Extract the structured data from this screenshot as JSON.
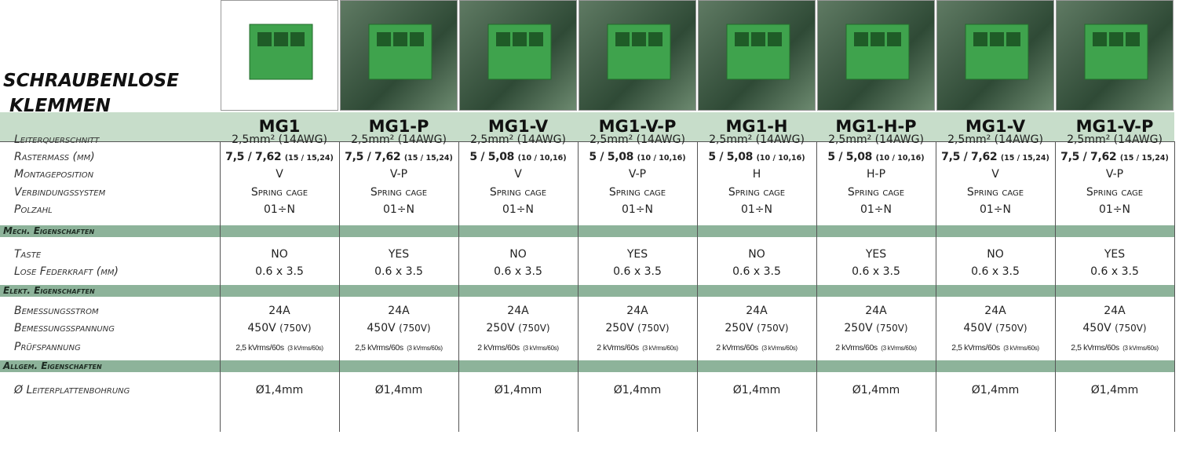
{
  "title": [
    "SCHRAUBENLOSE",
    "KLEMMEN"
  ],
  "models": [
    "MG1",
    "MG1-P",
    "MG1-V",
    "MG1-V-P",
    "MG1-H",
    "MG1-H-P",
    "MG1-V",
    "MG1-V-P"
  ],
  "spec_groups": [
    {
      "heading": null,
      "rows": [
        {
          "label": "Leiterquerschnitt",
          "values": [
            "2,5mm² (14AWG)",
            "2,5mm² (14AWG)",
            "2,5mm² (14AWG)",
            "2,5mm² (14AWG)",
            "2,5mm² (14AWG)",
            "2,5mm² (14AWG)",
            "2,5mm² (14AWG)",
            "2,5mm² (14AWG)"
          ]
        },
        {
          "label": "Rastermass (mm)",
          "values": [
            {
              "main": "7,5 / 7,62",
              "sub": "(15 / 15,24)"
            },
            {
              "main": "7,5 / 7,62",
              "sub": "(15 / 15,24)"
            },
            {
              "main": "5 / 5,08",
              "sub": "(10 / 10,16)"
            },
            {
              "main": "5 / 5,08",
              "sub": "(10 / 10,16)"
            },
            {
              "main": "5 / 5,08",
              "sub": "(10 / 10,16)"
            },
            {
              "main": "5 / 5,08",
              "sub": "(10 / 10,16)"
            },
            {
              "main": "7,5 / 7,62",
              "sub": "(15 / 15,24)"
            },
            {
              "main": "7,5 / 7,62",
              "sub": "(15 / 15,24)"
            }
          ]
        },
        {
          "label": "Montageposition",
          "values": [
            "V",
            "V-P",
            "V",
            "V-P",
            "H",
            "H-P",
            "V",
            "V-P"
          ]
        },
        {
          "label": "Verbindungssystem",
          "values": [
            "Spring cage",
            "Spring cage",
            "Spring cage",
            "Spring cage",
            "Spring cage",
            "Spring cage",
            "Spring cage",
            "Spring cage"
          ]
        },
        {
          "label": "Polzahl",
          "values": [
            "01÷N",
            "01÷N",
            "01÷N",
            "01÷N",
            "01÷N",
            "01÷N",
            "01÷N",
            "01÷N"
          ]
        }
      ]
    },
    {
      "heading": "Mech. Eigenschaften",
      "rows": [
        {
          "label": "Taste",
          "values": [
            "NO",
            "YES",
            "NO",
            "YES",
            "NO",
            "YES",
            "NO",
            "YES"
          ]
        },
        {
          "label": "Lose Federkraft (mm)",
          "values": [
            "0.6 x 3.5",
            "0.6 x 3.5",
            "0.6 x 3.5",
            "0.6 x 3.5",
            "0.6 x 3.5",
            "0.6 x 3.5",
            "0.6 x 3.5",
            "0.6 x 3.5"
          ]
        }
      ]
    },
    {
      "heading": "Elekt. Eigenschaften",
      "rows": [
        {
          "label": "Bemessungsstrom",
          "values": [
            "24A",
            "24A",
            "24A",
            "24A",
            "24A",
            "24A",
            "24A",
            "24A"
          ]
        },
        {
          "label": "Bemessungsspannung",
          "values": [
            {
              "main": "450V",
              "sub": "(750V)"
            },
            {
              "main": "450V",
              "sub": "(750V)"
            },
            {
              "main": "250V",
              "sub": "(750V)"
            },
            {
              "main": "250V",
              "sub": "(750V)"
            },
            {
              "main": "250V",
              "sub": "(750V)"
            },
            {
              "main": "250V",
              "sub": "(750V)"
            },
            {
              "main": "450V",
              "sub": "(750V)"
            },
            {
              "main": "450V",
              "sub": "(750V)"
            }
          ]
        },
        {
          "label": "Prüfspannung",
          "values": [
            {
              "main": "2,5 kVrms/60s",
              "sub": "(3 kVrms/60s)"
            },
            {
              "main": "2,5 kVrms/60s",
              "sub": "(3 kVrms/60s)"
            },
            {
              "main": "2 kVrms/60s",
              "sub": "(3 kVrms/60s)"
            },
            {
              "main": "2 kVrms/60s",
              "sub": "(3 kVrms/60s)"
            },
            {
              "main": "2 kVrms/60s",
              "sub": "(3 kVrms/60s)"
            },
            {
              "main": "2 kVrms/60s",
              "sub": "(3 kVrms/60s)"
            },
            {
              "main": "2,5 kVrms/60s",
              "sub": "(3 kVrms/60s)"
            },
            {
              "main": "2,5 kVrms/60s",
              "sub": "(3 kVrms/60s)"
            }
          ]
        }
      ]
    },
    {
      "heading": "Allgem. Eigenschaften",
      "rows": [
        {
          "label": "Ø Leiterplattenbohrung",
          "values": [
            "Ø1,4mm",
            "Ø1,4mm",
            "Ø1,4mm",
            "Ø1,4mm",
            "Ø1,4mm",
            "Ø1,4mm",
            "Ø1,4mm",
            "Ø1,4mm"
          ]
        }
      ]
    }
  ]
}
